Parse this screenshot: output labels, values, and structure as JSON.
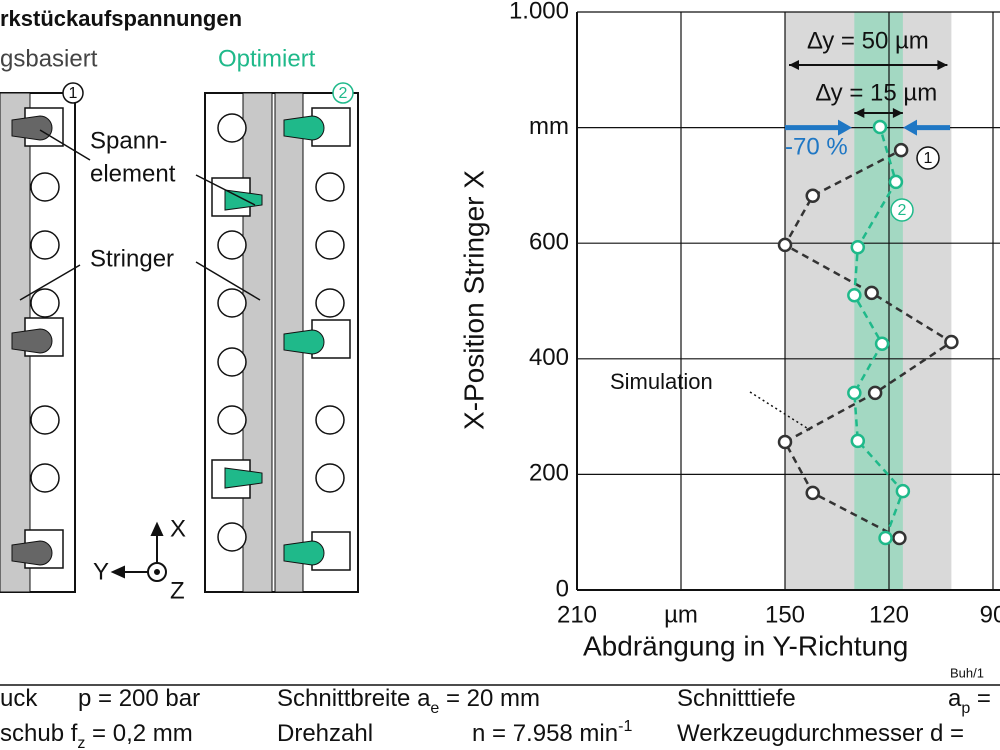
{
  "diagram": {
    "title": "rkstückaufspannungen",
    "left_label": "gsbasiert",
    "right_label": "Optimiert",
    "marker_left": "1",
    "marker_right": "2",
    "clamp_label_1": "Spann-",
    "clamp_label_2": "element",
    "stringer_label": "Stringer",
    "axis_x": "X",
    "axis_y": "Y",
    "axis_z": "Z"
  },
  "chart_data": {
    "type": "scatter",
    "ylabel": "X-Position Stringer X",
    "xlabel": "Abdrängung in Y-Richtung",
    "xlim": [
      210,
      90
    ],
    "xticks": [
      210,
      {
        "value": 180,
        "label": "µm"
      },
      150,
      120,
      90
    ],
    "ylim": [
      0,
      1000
    ],
    "yticks": [
      0,
      200,
      400,
      600,
      {
        "value": 800,
        "label": "mm"
      },
      {
        "value": 1000,
        "label": "1.000"
      }
    ],
    "grid": true,
    "bands": [
      {
        "from": 150,
        "to": 102,
        "color": "#d9d9d9",
        "label": "∆y = 50 µm"
      },
      {
        "from": 130,
        "to": 116,
        "color": "#a3d8c2",
        "label": "∆y = 15 µm"
      }
    ],
    "series": [
      {
        "color": "#333333",
        "x": [
          117,
          142,
          150,
          124,
          102,
          125,
          150,
          142,
          116.5
        ],
        "y": [
          90,
          168,
          256,
          341,
          429,
          514,
          597,
          682,
          761
        ]
      },
      {
        "color": "#1fb98a",
        "x": [
          121,
          116,
          129,
          130,
          122,
          130,
          129,
          118,
          122.6
        ],
        "y": [
          90,
          171,
          258,
          341,
          426,
          510,
          593,
          706,
          801
        ]
      }
    ],
    "annotations": {
      "reduction": "-70 %",
      "simulation": "Simulation",
      "marker_1": "1",
      "marker_2": "2",
      "credit": "Buh/1"
    }
  },
  "parameters": {
    "rows": [
      [
        {
          "text": "uck"
        },
        {
          "text": "p = 200 bar"
        },
        {
          "text": "Schnittbreite a",
          "sub": "e",
          "rest": " = 20 mm"
        },
        {
          "text": "Schnitttiefe"
        },
        {
          "text": "a",
          "sub": "p",
          "rest": " ="
        }
      ],
      [
        {
          "text": "schub f",
          "sub": "z",
          "rest": " = 0,2  mm"
        },
        {
          "text": "Drehzahl"
        },
        {
          "text": "n = 7.958 min",
          "sup": "-1"
        },
        {
          "text": "Werkzeugdurchmesser d ="
        }
      ]
    ]
  }
}
